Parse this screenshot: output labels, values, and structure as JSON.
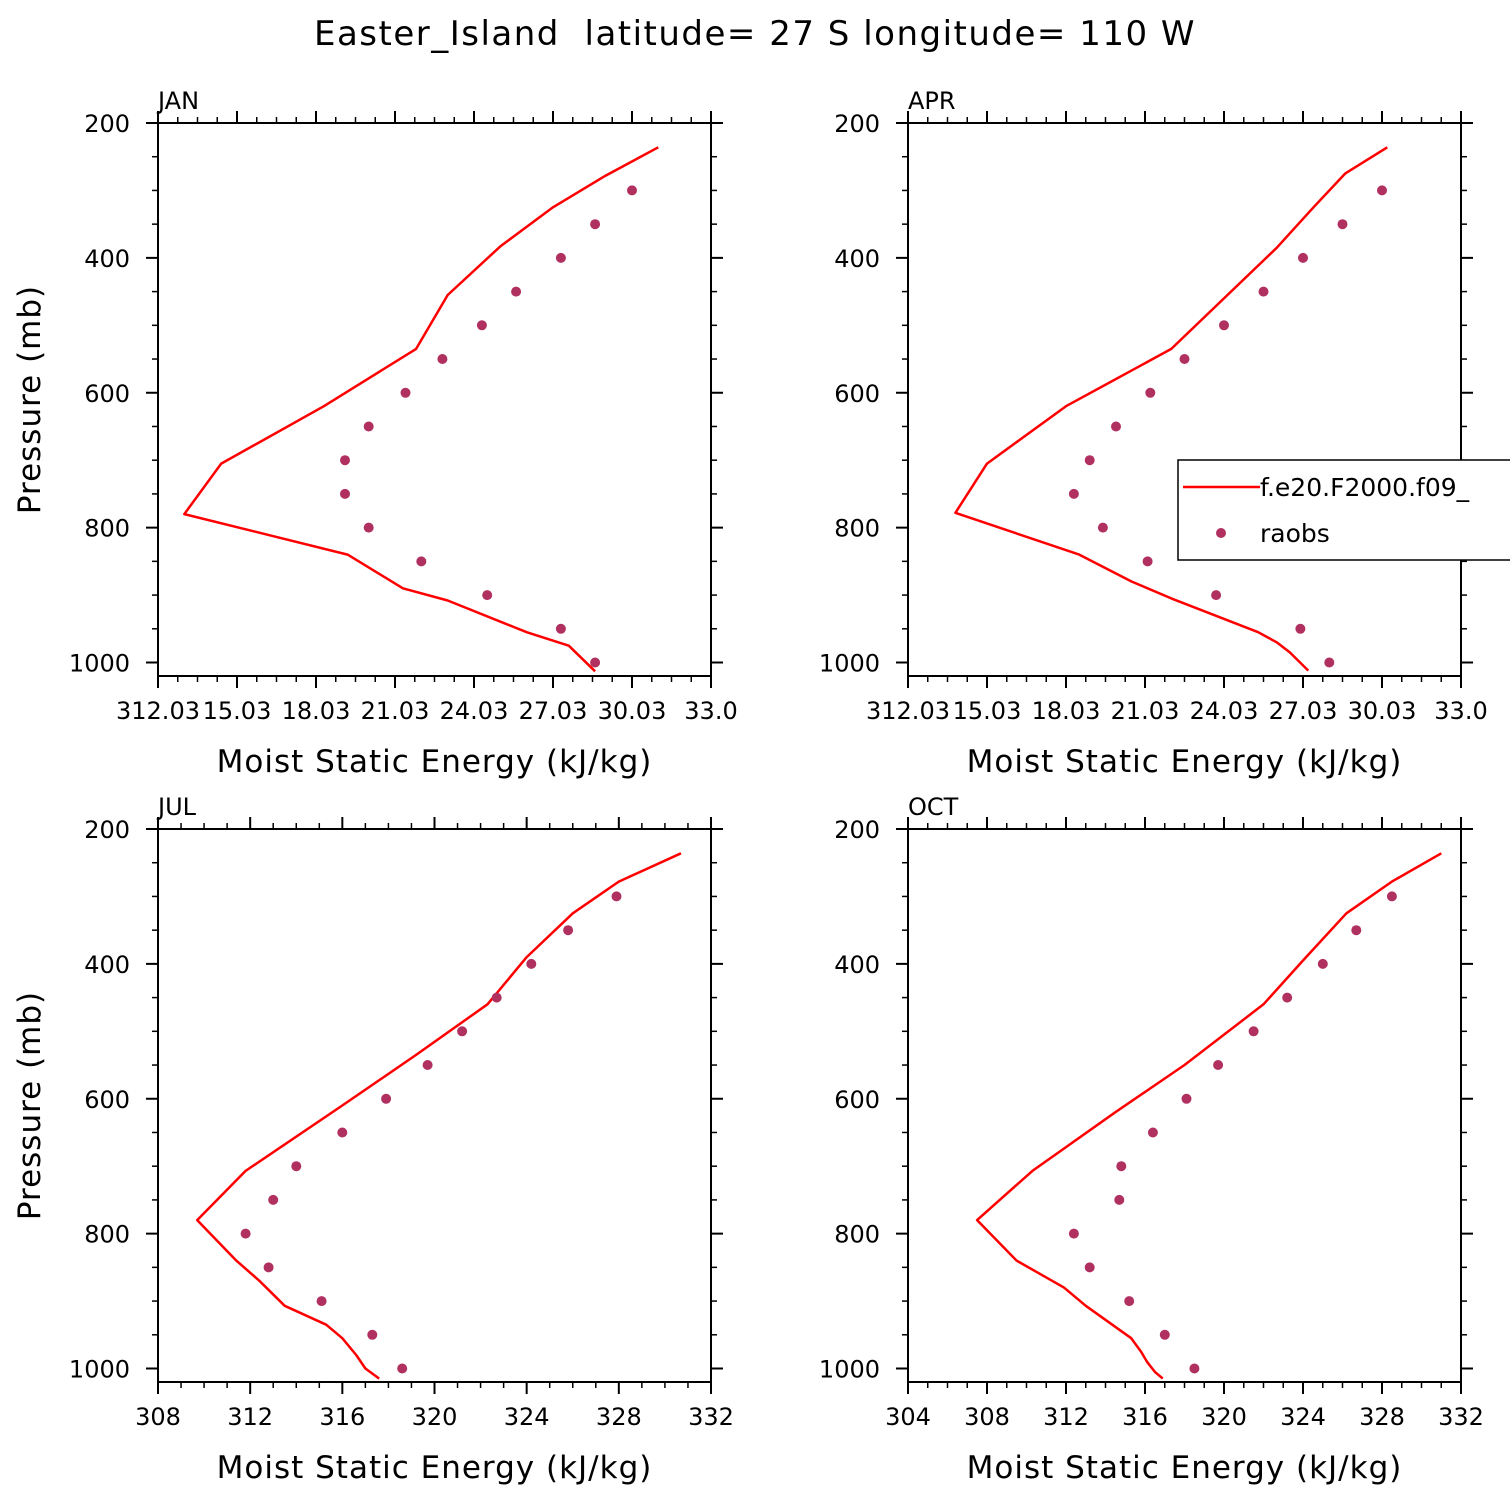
{
  "title": "Easter_Island  latitude= 27 S longitude= 110 W",
  "legend": {
    "entries": [
      {
        "label": "f.e20.F2000.f09_",
        "type": "line",
        "color": "#ff0000"
      },
      {
        "label": "raobs",
        "type": "marker",
        "color": "#b03060"
      }
    ]
  },
  "colors": {
    "model": "#ff0000",
    "obs": "#b03060",
    "axis": "#000000"
  },
  "chart_data": [
    {
      "type": "line",
      "panel": "JAN",
      "xlabel": "Moist Static Energy (kJ/kg)",
      "ylabel": "Pressure (mb)",
      "xlim": [
        312,
        333
      ],
      "xticks": [
        312,
        315,
        318,
        321,
        324,
        327,
        330,
        333
      ],
      "xtick_labels": [
        "312.03",
        "15.03",
        "18.03",
        "21.03",
        "24.03",
        "27.03",
        "30.03",
        "33.0"
      ],
      "ylim": [
        200,
        1020
      ],
      "yticks": [
        200,
        400,
        600,
        800,
        1000
      ],
      "y_inverted": true,
      "series": [
        {
          "name": "f.e20.F2000.f09_",
          "style": "line",
          "color": "#ff0000",
          "x": [
            331.0,
            329.0,
            327.0,
            325.0,
            323.0,
            321.8,
            318.3,
            314.4,
            313.0,
            319.2,
            321.3,
            323.0,
            326.0,
            327.6,
            328.6
          ],
          "y": [
            236,
            278,
            325,
            383,
            455,
            535,
            620,
            705,
            780,
            840,
            890,
            908,
            955,
            975,
            1013
          ]
        },
        {
          "name": "raobs",
          "style": "marker",
          "color": "#b03060",
          "x": [
            330.0,
            328.6,
            327.3,
            325.6,
            324.3,
            322.8,
            321.4,
            320.0,
            319.1,
            319.1,
            320.0,
            322.0,
            324.5,
            327.3,
            328.6
          ],
          "y": [
            300,
            350,
            400,
            450,
            500,
            550,
            600,
            650,
            700,
            750,
            800,
            850,
            900,
            950,
            1000
          ]
        }
      ]
    },
    {
      "type": "line",
      "panel": "APR",
      "xlabel": "Moist Static Energy (kJ/kg)",
      "ylabel": "",
      "xlim": [
        312,
        333
      ],
      "xticks": [
        312,
        315,
        318,
        321,
        324,
        327,
        330,
        333
      ],
      "xtick_labels": [
        "312.03",
        "15.03",
        "18.03",
        "21.03",
        "24.03",
        "27.03",
        "30.03",
        "33.0"
      ],
      "ylim": [
        200,
        1020
      ],
      "yticks": [
        200,
        400,
        600,
        800,
        1000
      ],
      "y_inverted": true,
      "series": [
        {
          "name": "f.e20.F2000.f09_",
          "style": "line",
          "color": "#ff0000",
          "x": [
            330.2,
            328.6,
            327.4,
            326.0,
            322.0,
            318.0,
            315.0,
            313.8,
            318.5,
            320.5,
            322.0,
            325.3,
            326.0,
            326.5,
            327.2
          ],
          "y": [
            236,
            275,
            325,
            385,
            535,
            620,
            705,
            778,
            840,
            880,
            905,
            955,
            970,
            985,
            1012
          ]
        },
        {
          "name": "raobs",
          "style": "marker",
          "color": "#b03060",
          "x": [
            330.0,
            328.5,
            327.0,
            325.5,
            324.0,
            322.5,
            321.2,
            319.9,
            318.9,
            318.3,
            319.4,
            321.1,
            323.7,
            326.9,
            328.0
          ],
          "y": [
            300,
            350,
            400,
            450,
            500,
            550,
            600,
            650,
            700,
            750,
            800,
            850,
            900,
            950,
            1000
          ]
        }
      ]
    },
    {
      "type": "line",
      "panel": "JUL",
      "xlabel": "Moist Static Energy (kJ/kg)",
      "ylabel": "Pressure (mb)",
      "xlim": [
        308,
        332
      ],
      "xticks": [
        308,
        312,
        316,
        320,
        324,
        328,
        332
      ],
      "xtick_labels": [
        "308",
        "312",
        "316",
        "320",
        "324",
        "328",
        "332"
      ],
      "ylim": [
        200,
        1020
      ],
      "yticks": [
        200,
        400,
        600,
        800,
        1000
      ],
      "y_inverted": true,
      "series": [
        {
          "name": "f.e20.F2000.f09_",
          "style": "line",
          "color": "#ff0000",
          "x": [
            330.7,
            328.0,
            326.0,
            324.0,
            322.3,
            319.2,
            316.0,
            311.8,
            309.7,
            311.4,
            312.4,
            313.5,
            315.3,
            316.0,
            316.6,
            317.0,
            317.6
          ],
          "y": [
            236,
            278,
            325,
            390,
            460,
            535,
            610,
            707,
            780,
            840,
            870,
            907,
            935,
            955,
            980,
            1000,
            1015
          ]
        },
        {
          "name": "raobs",
          "style": "marker",
          "color": "#b03060",
          "x": [
            327.9,
            325.8,
            324.2,
            322.7,
            321.2,
            319.7,
            317.9,
            316.0,
            314.0,
            313.0,
            311.8,
            312.8,
            315.1,
            317.3,
            318.6
          ],
          "y": [
            300,
            350,
            400,
            450,
            500,
            550,
            600,
            650,
            700,
            750,
            800,
            850,
            900,
            950,
            1000
          ]
        }
      ]
    },
    {
      "type": "line",
      "panel": "OCT",
      "xlabel": "Moist Static Energy (kJ/kg)",
      "ylabel": "",
      "xlim": [
        304,
        332
      ],
      "xticks": [
        304,
        308,
        312,
        316,
        320,
        324,
        328,
        332
      ],
      "xtick_labels": [
        "304",
        "308",
        "312",
        "316",
        "320",
        "324",
        "328",
        "332"
      ],
      "ylim": [
        200,
        1020
      ],
      "yticks": [
        200,
        400,
        600,
        800,
        1000
      ],
      "y_inverted": true,
      "series": [
        {
          "name": "f.e20.F2000.f09_",
          "style": "line",
          "color": "#ff0000",
          "x": [
            331.0,
            328.5,
            326.2,
            324.0,
            322.0,
            318.0,
            314.5,
            310.3,
            307.5,
            309.5,
            311.9,
            313.0,
            315.3,
            315.8,
            316.1,
            316.5,
            316.9
          ],
          "y": [
            236,
            278,
            325,
            395,
            460,
            550,
            620,
            707,
            780,
            840,
            880,
            907,
            955,
            975,
            990,
            1005,
            1015
          ]
        },
        {
          "name": "raobs",
          "style": "marker",
          "color": "#b03060",
          "x": [
            328.5,
            326.7,
            325.0,
            323.2,
            321.5,
            319.7,
            318.1,
            316.4,
            314.8,
            314.7,
            312.4,
            313.2,
            315.2,
            317.0,
            318.5
          ],
          "y": [
            300,
            350,
            400,
            450,
            500,
            550,
            600,
            650,
            700,
            750,
            800,
            850,
            900,
            950,
            1000
          ]
        }
      ]
    }
  ]
}
